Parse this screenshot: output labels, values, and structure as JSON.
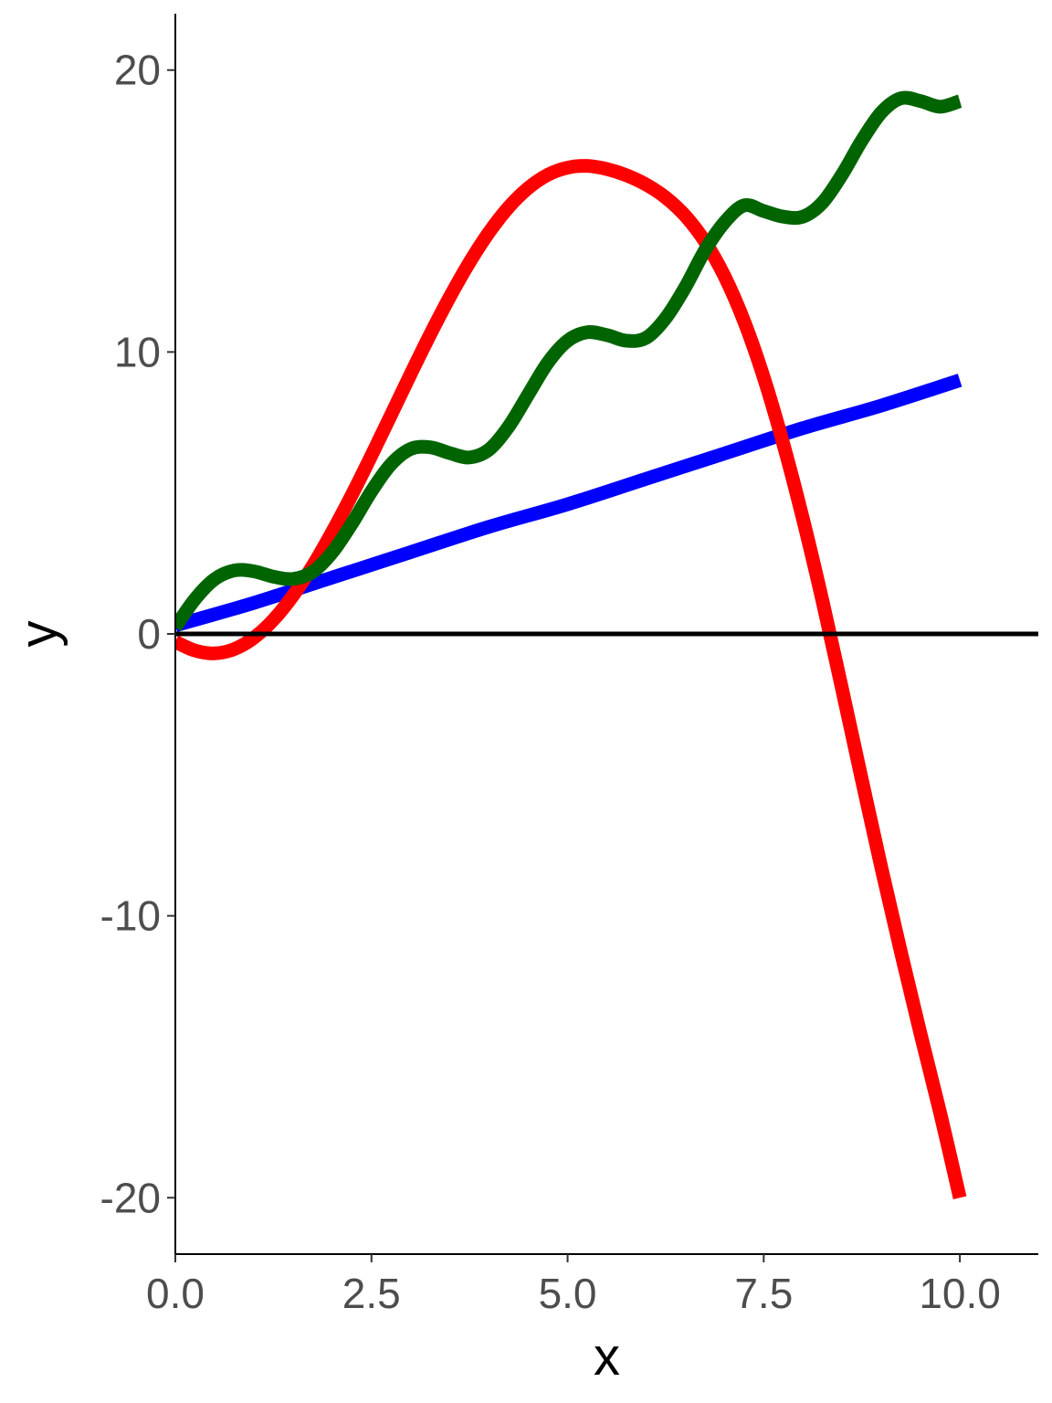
{
  "chart_data": {
    "type": "line",
    "xlabel": "x",
    "ylabel": "y",
    "xlim": [
      0,
      11
    ],
    "ylim": [
      -22,
      22
    ],
    "x_ticks": [
      0,
      2.5,
      5,
      7.5,
      10
    ],
    "x_tick_labels": [
      "0.0",
      "2.5",
      "5.0",
      "7.5",
      "10.0"
    ],
    "y_ticks": [
      -20,
      -10,
      0,
      10,
      20
    ],
    "y_tick_labels": [
      "-20",
      "-10",
      "0",
      "10",
      "20"
    ],
    "grid": false,
    "legend": "none",
    "reference_line": {
      "y": 0,
      "color": "#000000"
    },
    "series": [
      {
        "color": "#0000ff",
        "x": [
          0,
          1,
          2,
          3,
          4,
          5,
          6,
          7,
          8,
          9,
          10
        ],
        "y": [
          0.3,
          1.1,
          2.0,
          2.9,
          3.8,
          4.6,
          5.5,
          6.4,
          7.3,
          8.1,
          9.0
        ]
      },
      {
        "color": "#ff0000",
        "x": [
          0,
          0.25,
          0.5,
          0.75,
          1,
          1.25,
          1.5,
          1.75,
          2,
          2.25,
          2.5,
          2.75,
          3,
          3.25,
          3.5,
          3.75,
          4,
          4.25,
          4.5,
          4.75,
          5,
          5.25,
          5.5,
          5.75,
          6,
          6.25,
          6.5,
          6.75,
          7,
          7.25,
          7.5,
          7.75,
          8,
          8.25,
          8.5,
          8.75,
          9,
          9.25,
          9.5,
          9.75,
          10
        ],
        "y": [
          -0.28,
          -0.59,
          -0.69,
          -0.54,
          -0.14,
          0.5,
          1.36,
          2.41,
          3.62,
          4.93,
          6.33,
          7.77,
          9.22,
          10.63,
          11.96,
          13.18,
          14.25,
          15.14,
          15.82,
          16.29,
          16.54,
          16.6,
          16.49,
          16.27,
          15.94,
          15.48,
          14.83,
          13.92,
          12.69,
          11.09,
          9.1,
          6.74,
          4.08,
          1.16,
          -1.97,
          -5.16,
          -8.3,
          -11.3,
          -14.2,
          -17.0,
          -20.0
        ]
      },
      {
        "color": "#006400",
        "x": [
          0,
          0.25,
          0.5,
          0.75,
          1,
          1.25,
          1.5,
          1.75,
          2,
          2.25,
          2.5,
          2.75,
          3,
          3.25,
          3.5,
          3.75,
          4,
          4.25,
          4.5,
          4.75,
          5,
          5.25,
          5.5,
          5.75,
          6,
          6.25,
          6.5,
          6.75,
          7,
          7.25,
          7.5,
          7.75,
          8,
          8.25,
          8.5,
          8.75,
          9,
          9.25,
          9.5,
          9.75,
          10
        ],
        "y": [
          0.24,
          1.23,
          1.94,
          2.25,
          2.22,
          2.03,
          1.95,
          2.2,
          2.89,
          3.91,
          5.06,
          6.02,
          6.56,
          6.62,
          6.41,
          6.26,
          6.54,
          7.36,
          8.5,
          9.63,
          10.4,
          10.7,
          10.6,
          10.4,
          10.5,
          11.2,
          12.3,
          13.6,
          14.6,
          15.2,
          15.0,
          14.8,
          14.8,
          15.3,
          16.3,
          17.5,
          18.5,
          19.0,
          18.9,
          18.7,
          18.9
        ]
      }
    ]
  }
}
